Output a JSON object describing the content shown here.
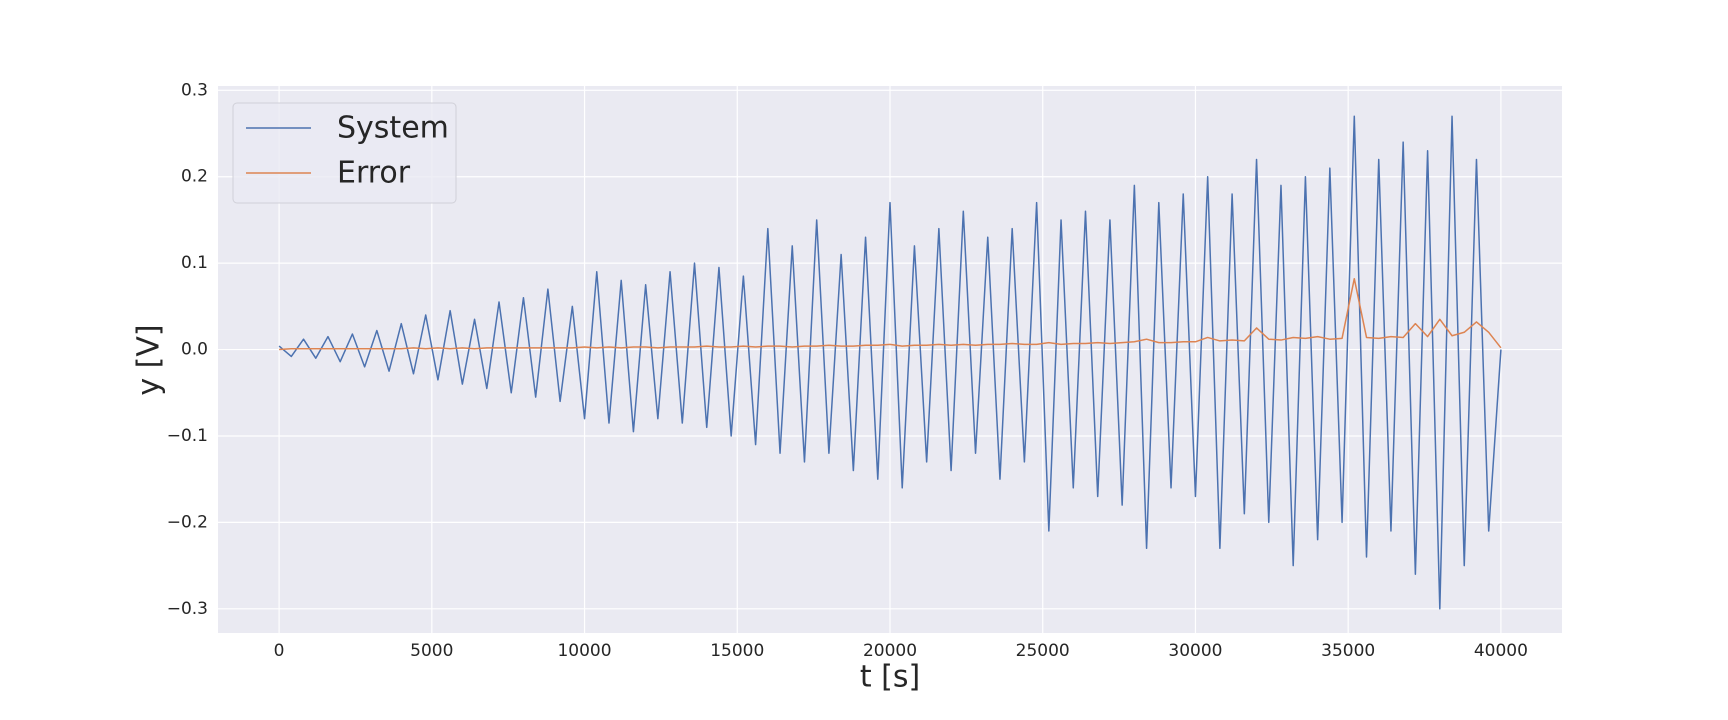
{
  "chart_data": {
    "type": "line",
    "xlabel": "t [s]",
    "ylabel": "y [V]",
    "x": [
      0,
      400,
      800,
      1200,
      1600,
      2000,
      2400,
      2800,
      3200,
      3600,
      4000,
      4400,
      4800,
      5200,
      5600,
      6000,
      6400,
      6800,
      7200,
      7600,
      8000,
      8400,
      8800,
      9200,
      9600,
      10000,
      10400,
      10800,
      11200,
      11600,
      12000,
      12400,
      12800,
      13200,
      13600,
      14000,
      14400,
      14800,
      15200,
      15600,
      16000,
      16400,
      16800,
      17200,
      17600,
      18000,
      18400,
      18800,
      19200,
      19600,
      20000,
      20400,
      20800,
      21200,
      21600,
      22000,
      22400,
      22800,
      23200,
      23600,
      24000,
      24400,
      24800,
      25200,
      25600,
      26000,
      26400,
      26800,
      27200,
      27600,
      28000,
      28400,
      28800,
      29200,
      29600,
      30000,
      30400,
      30800,
      31200,
      31600,
      32000,
      32400,
      32800,
      33200,
      33600,
      34000,
      34400,
      34800,
      35200,
      35600,
      36000,
      36400,
      36800,
      37200,
      37600,
      38000,
      38400,
      38800,
      39200,
      39600,
      40000
    ],
    "series": [
      {
        "name": "System",
        "color": "#4c72b0",
        "values": [
          0.004,
          -0.008,
          0.012,
          -0.01,
          0.015,
          -0.014,
          0.018,
          -0.02,
          0.022,
          -0.025,
          0.03,
          -0.028,
          0.04,
          -0.035,
          0.045,
          -0.04,
          0.035,
          -0.045,
          0.055,
          -0.05,
          0.06,
          -0.055,
          0.07,
          -0.06,
          0.05,
          -0.08,
          0.09,
          -0.085,
          0.08,
          -0.095,
          0.075,
          -0.08,
          0.09,
          -0.085,
          0.1,
          -0.09,
          0.095,
          -0.1,
          0.085,
          -0.11,
          0.14,
          -0.12,
          0.12,
          -0.13,
          0.15,
          -0.12,
          0.11,
          -0.14,
          0.13,
          -0.15,
          0.17,
          -0.16,
          0.12,
          -0.13,
          0.14,
          -0.14,
          0.16,
          -0.12,
          0.13,
          -0.15,
          0.14,
          -0.13,
          0.17,
          -0.21,
          0.15,
          -0.16,
          0.16,
          -0.17,
          0.15,
          -0.18,
          0.19,
          -0.23,
          0.17,
          -0.16,
          0.18,
          -0.17,
          0.2,
          -0.23,
          0.18,
          -0.19,
          0.22,
          -0.2,
          0.19,
          -0.25,
          0.2,
          -0.22,
          0.21,
          -0.2,
          0.27,
          -0.24,
          0.22,
          -0.21,
          0.24,
          -0.26,
          0.23,
          -0.3,
          0.27,
          -0.25,
          0.22,
          -0.21,
          0.0
        ]
      },
      {
        "name": "Error",
        "color": "#dd8452",
        "values": [
          0.0,
          0.001,
          0.001,
          0.001,
          0.001,
          0.001,
          0.001,
          0.001,
          0.001,
          0.001,
          0.001,
          0.002,
          0.001,
          0.002,
          0.001,
          0.002,
          0.001,
          0.002,
          0.002,
          0.002,
          0.002,
          0.002,
          0.002,
          0.002,
          0.002,
          0.003,
          0.002,
          0.003,
          0.002,
          0.003,
          0.003,
          0.002,
          0.003,
          0.003,
          0.003,
          0.004,
          0.003,
          0.003,
          0.004,
          0.003,
          0.004,
          0.004,
          0.003,
          0.004,
          0.004,
          0.005,
          0.004,
          0.004,
          0.005,
          0.005,
          0.006,
          0.004,
          0.005,
          0.005,
          0.006,
          0.005,
          0.006,
          0.005,
          0.006,
          0.006,
          0.007,
          0.006,
          0.006,
          0.008,
          0.006,
          0.007,
          0.007,
          0.008,
          0.007,
          0.008,
          0.009,
          0.012,
          0.008,
          0.008,
          0.009,
          0.009,
          0.014,
          0.01,
          0.011,
          0.01,
          0.025,
          0.012,
          0.011,
          0.014,
          0.013,
          0.015,
          0.012,
          0.013,
          0.082,
          0.014,
          0.013,
          0.015,
          0.014,
          0.03,
          0.015,
          0.035,
          0.016,
          0.02,
          0.032,
          0.02,
          0.002
        ]
      }
    ],
    "xlim": [
      -2000,
      42000
    ],
    "ylim": [
      -0.328,
      0.305
    ],
    "xticks": [
      0,
      5000,
      10000,
      15000,
      20000,
      25000,
      30000,
      35000,
      40000
    ],
    "yticks": [
      {
        "value": -0.3,
        "label": "−0.3"
      },
      {
        "value": -0.2,
        "label": "−0.2"
      },
      {
        "value": -0.1,
        "label": "−0.1"
      },
      {
        "value": 0,
        "label": "0.0"
      },
      0.1,
      0.2,
      0.3
    ],
    "grid": true,
    "legend": "upper left"
  }
}
